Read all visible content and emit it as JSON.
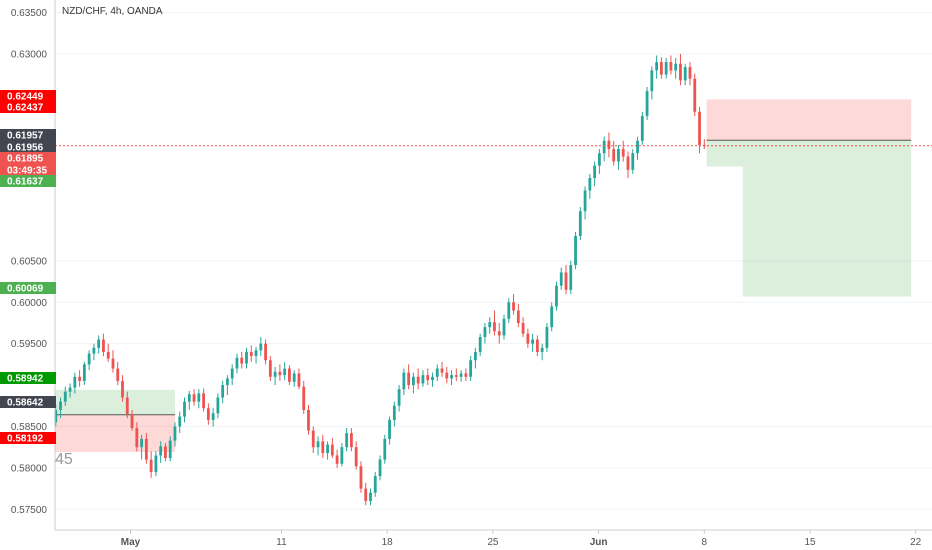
{
  "chart_data": {
    "type": "candlestick",
    "title": "NZD/CHF, 4h, OANDA",
    "ylim": [
      0.5725,
      0.6365
    ],
    "y_ticks": [
      "0.63500",
      "0.63000",
      "0.60500",
      "0.60000",
      "0.59500",
      "0.58500",
      "0.58000",
      "0.57500"
    ],
    "y_tick_values": [
      0.635,
      0.63,
      0.605,
      0.6,
      0.595,
      0.585,
      0.58,
      0.575
    ],
    "x_ticks": [
      "May",
      "11",
      "18",
      "25",
      "Jun",
      "8",
      "15",
      "22"
    ],
    "colors": {
      "up": "#26a69a",
      "down": "#ef5350",
      "price_line": "#ef5350"
    },
    "watermark": "45",
    "current_price": 0.6189,
    "price_tags": [
      {
        "label": "0.62449",
        "value": 0.62449,
        "color": "#ff0000"
      },
      {
        "label": "0.62437",
        "value": 0.62437,
        "color": "#ff0000"
      },
      {
        "label": "0.61957",
        "value": 0.61957,
        "color": "#434651"
      },
      {
        "label": "0.61956",
        "value": 0.61956,
        "color": "#434651"
      },
      {
        "label": "0.61895",
        "value": 0.61895,
        "color": "#ef5350"
      },
      {
        "label": "03:49:35",
        "value": 0.6174,
        "color": "#ef5350"
      },
      {
        "label": "0.61637",
        "value": 0.61637,
        "color": "#4caf50"
      },
      {
        "label": "0.60069",
        "value": 0.60069,
        "color": "#4caf50"
      },
      {
        "label": "0.58942",
        "value": 0.58942,
        "color": "#009900"
      },
      {
        "label": "0.58642",
        "value": 0.58642,
        "color": "#434651"
      },
      {
        "label": "0.58192",
        "value": 0.58192,
        "color": "#ff0000"
      }
    ],
    "positions": [
      {
        "name": "long-position",
        "entry": 0.58642,
        "target": 0.58942,
        "stop": 0.58192,
        "start_x": "Apr 26",
        "end_x": "May 6"
      },
      {
        "name": "short-position",
        "entry": 0.61957,
        "target": 0.60069,
        "stop": 0.62449,
        "start_x": "Jun 9",
        "end_x": "Jun 23"
      }
    ],
    "candles": [
      [
        0.5855,
        0.5876,
        0.585,
        0.587
      ],
      [
        0.587,
        0.5885,
        0.586,
        0.588
      ],
      [
        0.588,
        0.5898,
        0.5875,
        0.5892
      ],
      [
        0.5892,
        0.5902,
        0.5885,
        0.5897
      ],
      [
        0.5897,
        0.5915,
        0.589,
        0.591
      ],
      [
        0.591,
        0.5918,
        0.5898,
        0.5905
      ],
      [
        0.5905,
        0.5928,
        0.59,
        0.5925
      ],
      [
        0.5925,
        0.5942,
        0.5918,
        0.5938
      ],
      [
        0.5938,
        0.595,
        0.593,
        0.5945
      ],
      [
        0.5945,
        0.596,
        0.5938,
        0.5955
      ],
      [
        0.5955,
        0.5962,
        0.5935,
        0.594
      ],
      [
        0.594,
        0.595,
        0.5928,
        0.5932
      ],
      [
        0.5932,
        0.5942,
        0.5915,
        0.592
      ],
      [
        0.592,
        0.5928,
        0.59,
        0.5905
      ],
      [
        0.5905,
        0.5912,
        0.588,
        0.5885
      ],
      [
        0.5885,
        0.5892,
        0.586,
        0.5865
      ],
      [
        0.5865,
        0.587,
        0.5845,
        0.5848
      ],
      [
        0.5848,
        0.5855,
        0.582,
        0.5825
      ],
      [
        0.5825,
        0.584,
        0.581,
        0.5835
      ],
      [
        0.5835,
        0.5842,
        0.5805,
        0.581
      ],
      [
        0.581,
        0.582,
        0.5788,
        0.5795
      ],
      [
        0.5795,
        0.582,
        0.579,
        0.5815
      ],
      [
        0.5815,
        0.5832,
        0.5806,
        0.5826
      ],
      [
        0.5826,
        0.583,
        0.5808,
        0.5812
      ],
      [
        0.5812,
        0.5838,
        0.5808,
        0.5833
      ],
      [
        0.5833,
        0.5855,
        0.5826,
        0.585
      ],
      [
        0.585,
        0.5868,
        0.5842,
        0.5862
      ],
      [
        0.5862,
        0.5885,
        0.5855,
        0.588
      ],
      [
        0.588,
        0.5893,
        0.587,
        0.5889
      ],
      [
        0.5889,
        0.5895,
        0.5875,
        0.588
      ],
      [
        0.588,
        0.5895,
        0.5872,
        0.589
      ],
      [
        0.589,
        0.5896,
        0.5868,
        0.5872
      ],
      [
        0.5872,
        0.5878,
        0.5852,
        0.5858
      ],
      [
        0.5858,
        0.5872,
        0.585,
        0.5866
      ],
      [
        0.5866,
        0.589,
        0.586,
        0.5885
      ],
      [
        0.5885,
        0.5905,
        0.5878,
        0.59
      ],
      [
        0.59,
        0.5912,
        0.5888,
        0.5908
      ],
      [
        0.5908,
        0.5925,
        0.59,
        0.592
      ],
      [
        0.592,
        0.5938,
        0.5914,
        0.5933
      ],
      [
        0.5933,
        0.594,
        0.592,
        0.5926
      ],
      [
        0.5926,
        0.5945,
        0.592,
        0.594
      ],
      [
        0.594,
        0.5948,
        0.5928,
        0.5935
      ],
      [
        0.5935,
        0.5946,
        0.5926,
        0.5942
      ],
      [
        0.5942,
        0.5958,
        0.5935,
        0.595
      ],
      [
        0.595,
        0.5955,
        0.5925,
        0.593
      ],
      [
        0.593,
        0.5935,
        0.5905,
        0.591
      ],
      [
        0.591,
        0.5922,
        0.59,
        0.5916
      ],
      [
        0.5916,
        0.5925,
        0.5905,
        0.5912
      ],
      [
        0.5912,
        0.5928,
        0.5906,
        0.592
      ],
      [
        0.592,
        0.5924,
        0.59,
        0.5904
      ],
      [
        0.5904,
        0.5918,
        0.5898,
        0.5914
      ],
      [
        0.5914,
        0.592,
        0.5895,
        0.5898
      ],
      [
        0.5898,
        0.5905,
        0.5865,
        0.587
      ],
      [
        0.587,
        0.5876,
        0.584,
        0.5845
      ],
      [
        0.5845,
        0.585,
        0.5818,
        0.5825
      ],
      [
        0.5825,
        0.5838,
        0.5815,
        0.5832
      ],
      [
        0.5832,
        0.584,
        0.5812,
        0.5818
      ],
      [
        0.5818,
        0.5832,
        0.581,
        0.5828
      ],
      [
        0.5828,
        0.5836,
        0.5812,
        0.5815
      ],
      [
        0.5815,
        0.5822,
        0.58,
        0.5805
      ],
      [
        0.5805,
        0.583,
        0.5802,
        0.5825
      ],
      [
        0.5825,
        0.5848,
        0.582,
        0.5842
      ],
      [
        0.5842,
        0.5848,
        0.582,
        0.5825
      ],
      [
        0.5825,
        0.5832,
        0.5798,
        0.5802
      ],
      [
        0.5802,
        0.5808,
        0.577,
        0.5775
      ],
      [
        0.5775,
        0.5782,
        0.5755,
        0.576
      ],
      [
        0.576,
        0.5775,
        0.5755,
        0.577
      ],
      [
        0.577,
        0.5795,
        0.5765,
        0.579
      ],
      [
        0.579,
        0.5815,
        0.5785,
        0.581
      ],
      [
        0.581,
        0.584,
        0.5805,
        0.5835
      ],
      [
        0.5835,
        0.5862,
        0.5828,
        0.5858
      ],
      [
        0.5858,
        0.588,
        0.585,
        0.5875
      ],
      [
        0.5875,
        0.59,
        0.5868,
        0.5895
      ],
      [
        0.5895,
        0.592,
        0.5888,
        0.5915
      ],
      [
        0.5915,
        0.5925,
        0.5895,
        0.59
      ],
      [
        0.59,
        0.5915,
        0.589,
        0.591
      ],
      [
        0.591,
        0.592,
        0.5895,
        0.5902
      ],
      [
        0.5902,
        0.5918,
        0.5898,
        0.5912
      ],
      [
        0.5912,
        0.592,
        0.59,
        0.5906
      ],
      [
        0.5906,
        0.5915,
        0.5898,
        0.591
      ],
      [
        0.591,
        0.5925,
        0.5905,
        0.592
      ],
      [
        0.592,
        0.5928,
        0.591,
        0.5915
      ],
      [
        0.5915,
        0.5922,
        0.5902,
        0.5908
      ],
      [
        0.5908,
        0.5918,
        0.59,
        0.5912
      ],
      [
        0.5912,
        0.592,
        0.5905,
        0.591
      ],
      [
        0.591,
        0.5918,
        0.5904,
        0.5914
      ],
      [
        0.5914,
        0.592,
        0.5905,
        0.591
      ],
      [
        0.591,
        0.5935,
        0.5905,
        0.593
      ],
      [
        0.593,
        0.5945,
        0.592,
        0.594
      ],
      [
        0.594,
        0.5962,
        0.5935,
        0.5958
      ],
      [
        0.5958,
        0.5975,
        0.595,
        0.597
      ],
      [
        0.597,
        0.5982,
        0.5962,
        0.5976
      ],
      [
        0.5976,
        0.599,
        0.596,
        0.5965
      ],
      [
        0.5965,
        0.5975,
        0.595,
        0.596
      ],
      [
        0.596,
        0.5985,
        0.5955,
        0.598
      ],
      [
        0.598,
        0.6005,
        0.5975,
        0.6
      ],
      [
        0.6,
        0.601,
        0.5985,
        0.599
      ],
      [
        0.599,
        0.5998,
        0.597,
        0.5975
      ],
      [
        0.5975,
        0.5982,
        0.5958,
        0.5962
      ],
      [
        0.5962,
        0.5968,
        0.5945,
        0.595
      ],
      [
        0.595,
        0.5962,
        0.594,
        0.5955
      ],
      [
        0.5955,
        0.596,
        0.5935,
        0.594
      ],
      [
        0.594,
        0.595,
        0.593,
        0.5945
      ],
      [
        0.5945,
        0.5975,
        0.594,
        0.597
      ],
      [
        0.597,
        0.6,
        0.5965,
        0.5995
      ],
      [
        0.5995,
        0.6025,
        0.599,
        0.602
      ],
      [
        0.602,
        0.6042,
        0.6015,
        0.6036
      ],
      [
        0.6036,
        0.6045,
        0.601,
        0.6015
      ],
      [
        0.6015,
        0.605,
        0.601,
        0.6045
      ],
      [
        0.6045,
        0.6085,
        0.604,
        0.608
      ],
      [
        0.608,
        0.6115,
        0.6075,
        0.611
      ],
      [
        0.611,
        0.614,
        0.61,
        0.6135
      ],
      [
        0.6135,
        0.6155,
        0.6125,
        0.615
      ],
      [
        0.615,
        0.617,
        0.614,
        0.6165
      ],
      [
        0.6165,
        0.6185,
        0.6155,
        0.618
      ],
      [
        0.618,
        0.62,
        0.617,
        0.6195
      ],
      [
        0.6195,
        0.6205,
        0.6175,
        0.6185
      ],
      [
        0.6185,
        0.6195,
        0.6165,
        0.617
      ],
      [
        0.617,
        0.619,
        0.616,
        0.6185
      ],
      [
        0.6185,
        0.6195,
        0.617,
        0.6176
      ],
      [
        0.6176,
        0.6182,
        0.615,
        0.616
      ],
      [
        0.616,
        0.6185,
        0.6155,
        0.618
      ],
      [
        0.618,
        0.62,
        0.6172,
        0.6195
      ],
      [
        0.6195,
        0.623,
        0.619,
        0.6225
      ],
      [
        0.6225,
        0.626,
        0.622,
        0.6255
      ],
      [
        0.6255,
        0.6285,
        0.6245,
        0.628
      ],
      [
        0.628,
        0.6298,
        0.627,
        0.629
      ],
      [
        0.629,
        0.6296,
        0.627,
        0.6275
      ],
      [
        0.6275,
        0.6295,
        0.627,
        0.629
      ],
      [
        0.629,
        0.6298,
        0.6275,
        0.628
      ],
      [
        0.628,
        0.6295,
        0.627,
        0.6288
      ],
      [
        0.6288,
        0.63,
        0.6262,
        0.6268
      ],
      [
        0.6268,
        0.6288,
        0.6262,
        0.6284
      ],
      [
        0.6284,
        0.629,
        0.6262,
        0.627
      ],
      [
        0.627,
        0.6276,
        0.6225,
        0.623
      ],
      [
        0.623,
        0.6236,
        0.618,
        0.619
      ],
      [
        0.619,
        0.6197,
        0.6185,
        0.6189
      ]
    ]
  }
}
